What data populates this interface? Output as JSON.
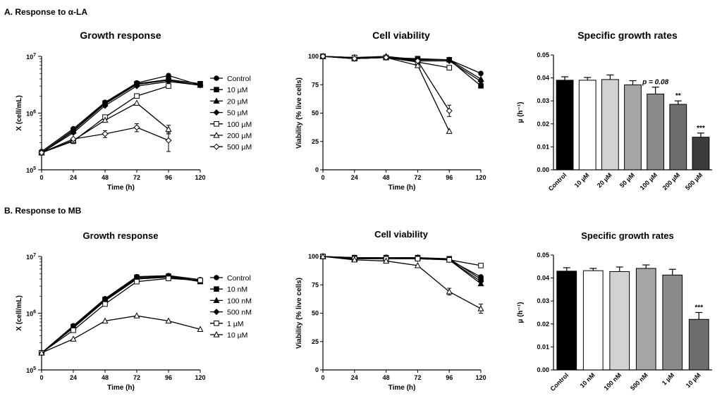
{
  "sections": [
    {
      "label": "A. Response to α-LA"
    },
    {
      "label": "B. Response to MB"
    }
  ],
  "chart_data": [
    {
      "type": "line",
      "title": "Growth response",
      "xlabel": "Time (h)",
      "ylabel": "X (cell/mL)",
      "yscale": "log",
      "ylim": [
        100000,
        10000000
      ],
      "xlim": [
        0,
        120
      ],
      "xticks": [
        "0",
        "24",
        "48",
        "72",
        "96",
        "120"
      ],
      "legend_position": "right",
      "series": [
        {
          "name": "Control",
          "marker": "circle-filled",
          "x": [
            0,
            24,
            48,
            72,
            96,
            120
          ],
          "y": [
            210000,
            530000,
            1550000,
            3400000,
            4600000,
            3100000
          ],
          "err": [
            0,
            0,
            0,
            0,
            0,
            0
          ]
        },
        {
          "name": "10 µM",
          "marker": "square-filled",
          "x": [
            0,
            24,
            48,
            72,
            96,
            120
          ],
          "y": [
            200000,
            500000,
            1500000,
            3300000,
            3900000,
            3300000
          ],
          "err": [
            0,
            0,
            0,
            0,
            0,
            0
          ]
        },
        {
          "name": "20 µM",
          "marker": "triangle-filled",
          "x": [
            0,
            24,
            48,
            72,
            96,
            120
          ],
          "y": [
            200000,
            480000,
            1450000,
            3200000,
            3800000,
            3100000
          ],
          "err": [
            0,
            0,
            0,
            0,
            0,
            0
          ]
        },
        {
          "name": "50 µM",
          "marker": "diamond-filled",
          "x": [
            0,
            24,
            48,
            72,
            96,
            120
          ],
          "y": [
            200000,
            450000,
            1350000,
            3000000,
            3600000,
            3100000
          ],
          "err": [
            0,
            0,
            0,
            0,
            0,
            0
          ]
        },
        {
          "name": "100 µM",
          "marker": "square-open",
          "x": [
            0,
            24,
            48,
            72,
            96
          ],
          "y": [
            200000,
            320000,
            850000,
            2000000,
            3000000
          ],
          "err": [
            0,
            30000,
            80000,
            0,
            0
          ]
        },
        {
          "name": "200 µM",
          "marker": "triangle-open",
          "x": [
            0,
            24,
            48,
            72,
            96
          ],
          "y": [
            200000,
            330000,
            750000,
            1500000,
            520000
          ],
          "err": [
            0,
            0,
            0,
            0,
            90000
          ]
        },
        {
          "name": "500 µM",
          "marker": "diamond-open",
          "x": [
            0,
            24,
            48,
            72,
            96
          ],
          "y": [
            200000,
            350000,
            430000,
            560000,
            330000
          ],
          "err": [
            0,
            0,
            60000,
            90000,
            120000
          ]
        }
      ]
    },
    {
      "type": "line",
      "title": "Cell viability",
      "xlabel": "Time (h)",
      "ylabel": "Viability (% live cells)",
      "ylim": [
        0,
        100
      ],
      "xlim": [
        0,
        120
      ],
      "xticks": [
        "0",
        "24",
        "48",
        "72",
        "96",
        "120"
      ],
      "yticks": [
        "0",
        "25",
        "50",
        "75",
        "100"
      ],
      "series": [
        {
          "marker": "circle-filled",
          "x": [
            0,
            24,
            48,
            72,
            96,
            120
          ],
          "y": [
            100,
            98,
            99,
            97,
            97,
            85
          ],
          "err": [
            0,
            0,
            0,
            0,
            0,
            0
          ]
        },
        {
          "marker": "square-filled",
          "x": [
            0,
            24,
            48,
            72,
            96,
            120
          ],
          "y": [
            100,
            98,
            99,
            98,
            97,
            74
          ],
          "err": [
            0,
            0,
            0,
            0,
            0,
            0
          ]
        },
        {
          "marker": "triangle-filled",
          "x": [
            0,
            24,
            48,
            72,
            96,
            120
          ],
          "y": [
            100,
            99,
            100,
            97,
            97,
            80
          ],
          "err": [
            0,
            0,
            0,
            0,
            0,
            0
          ]
        },
        {
          "marker": "diamond-filled",
          "x": [
            0,
            24,
            48,
            72,
            96,
            120
          ],
          "y": [
            100,
            99,
            99,
            96,
            96,
            78
          ],
          "err": [
            0,
            0,
            0,
            0,
            0,
            0
          ]
        },
        {
          "marker": "square-open",
          "x": [
            0,
            24,
            48,
            72,
            96
          ],
          "y": [
            100,
            99,
            99,
            95,
            90
          ],
          "err": [
            0,
            0,
            0,
            0,
            0
          ]
        },
        {
          "marker": "triangle-open",
          "x": [
            0,
            24,
            48,
            72,
            96
          ],
          "y": [
            100,
            98,
            99,
            92,
            34
          ],
          "err": [
            0,
            0,
            0,
            0,
            0
          ]
        },
        {
          "marker": "diamond-open",
          "x": [
            0,
            24,
            48,
            72,
            96
          ],
          "y": [
            100,
            98,
            99,
            96,
            52
          ],
          "err": [
            0,
            0,
            0,
            0,
            5
          ]
        }
      ]
    },
    {
      "type": "bar",
      "title": "Specific growth rates",
      "ylabel": "µ (h⁻¹)",
      "ylim": [
        0,
        0.05
      ],
      "yticks": [
        "0.00",
        "0.01",
        "0.02",
        "0.03",
        "0.04",
        "0.05"
      ],
      "categories": [
        "Control",
        "10 µM",
        "20 µM",
        "50 µM",
        "100 µM",
        "200 µM",
        "500 µM"
      ],
      "values": [
        0.039,
        0.039,
        0.0393,
        0.037,
        0.033,
        0.0285,
        0.0142
      ],
      "errors": [
        0.0015,
        0.0012,
        0.002,
        0.0018,
        0.003,
        0.0015,
        0.0018
      ],
      "colors": [
        "#000000",
        "#ffffff",
        "#d2d2d2",
        "#a5a5a5",
        "#8a8a8a",
        "#6e6e6e",
        "#3c3c3c"
      ],
      "annotations": [
        "",
        "",
        "",
        "",
        "p = 0.08",
        "**",
        "***"
      ]
    },
    {
      "type": "line",
      "title": "Growth response",
      "xlabel": "Time (h)",
      "ylabel": "X (cell/mL)",
      "yscale": "log",
      "ylim": [
        100000,
        10000000
      ],
      "xlim": [
        0,
        120
      ],
      "xticks": [
        "0",
        "24",
        "48",
        "72",
        "96",
        "120"
      ],
      "legend_position": "right",
      "series": [
        {
          "name": "Control",
          "marker": "circle-filled",
          "x": [
            0,
            24,
            48,
            72,
            96,
            120
          ],
          "y": [
            200000,
            600000,
            1800000,
            4400000,
            4600000,
            3900000
          ],
          "err": [
            0,
            0,
            0,
            0,
            0,
            0
          ]
        },
        {
          "name": "10 nM",
          "marker": "square-filled",
          "x": [
            0,
            24,
            48,
            72,
            96,
            120
          ],
          "y": [
            200000,
            580000,
            1750000,
            4300000,
            4500000,
            3700000
          ],
          "err": [
            0,
            0,
            0,
            0,
            0,
            0
          ]
        },
        {
          "name": "100 nM",
          "marker": "triangle-filled",
          "x": [
            0,
            24,
            48,
            72,
            96,
            120
          ],
          "y": [
            200000,
            560000,
            1700000,
            4100000,
            4400000,
            3600000
          ],
          "err": [
            0,
            0,
            0,
            0,
            0,
            0
          ]
        },
        {
          "name": "500 nM",
          "marker": "diamond-filled",
          "x": [
            0,
            24,
            48,
            72,
            96,
            120
          ],
          "y": [
            200000,
            550000,
            1650000,
            4000000,
            4300000,
            3700000
          ],
          "err": [
            0,
            0,
            0,
            0,
            0,
            0
          ]
        },
        {
          "name": "1 µM",
          "marker": "square-open",
          "x": [
            0,
            24,
            48,
            72,
            96,
            120
          ],
          "y": [
            200000,
            500000,
            1450000,
            3600000,
            4100000,
            3800000
          ],
          "err": [
            0,
            0,
            0,
            0,
            0,
            0
          ]
        },
        {
          "name": "10 µM",
          "marker": "triangle-open",
          "x": [
            0,
            24,
            48,
            72,
            96,
            120
          ],
          "y": [
            200000,
            350000,
            730000,
            900000,
            730000,
            520000
          ],
          "err": [
            0,
            0,
            0,
            0,
            0,
            0
          ]
        }
      ]
    },
    {
      "type": "line",
      "title": "Cell viability",
      "xlabel": "Time (h)",
      "ylabel": "Viability (% live cells)",
      "ylim": [
        0,
        100
      ],
      "xlim": [
        0,
        120
      ],
      "xticks": [
        "0",
        "24",
        "48",
        "72",
        "96",
        "120"
      ],
      "yticks": [
        "0",
        "25",
        "50",
        "75",
        "100"
      ],
      "series": [
        {
          "marker": "circle-filled",
          "x": [
            0,
            24,
            48,
            72,
            96,
            120
          ],
          "y": [
            100,
            99,
            99,
            99,
            97,
            82
          ],
          "err": [
            0,
            0,
            0,
            0,
            0,
            0
          ]
        },
        {
          "marker": "square-filled",
          "x": [
            0,
            24,
            48,
            72,
            96,
            120
          ],
          "y": [
            100,
            99,
            99,
            99,
            98,
            80
          ],
          "err": [
            0,
            0,
            0,
            0,
            0,
            0
          ]
        },
        {
          "marker": "triangle-filled",
          "x": [
            0,
            24,
            48,
            72,
            96,
            120
          ],
          "y": [
            100,
            98,
            99,
            99,
            97,
            76
          ],
          "err": [
            0,
            0,
            0,
            0,
            0,
            0
          ]
        },
        {
          "marker": "diamond-filled",
          "x": [
            0,
            24,
            48,
            72,
            96,
            120
          ],
          "y": [
            100,
            98,
            99,
            98,
            97,
            78
          ],
          "err": [
            0,
            0,
            0,
            0,
            0,
            0
          ]
        },
        {
          "marker": "square-open",
          "x": [
            0,
            24,
            48,
            72,
            96,
            120
          ],
          "y": [
            100,
            98,
            98,
            98,
            97,
            92
          ],
          "err": [
            0,
            0,
            0,
            0,
            0,
            0
          ]
        },
        {
          "marker": "triangle-open",
          "x": [
            0,
            24,
            48,
            72,
            96,
            120
          ],
          "y": [
            100,
            97,
            96,
            92,
            69,
            54
          ],
          "err": [
            0,
            0,
            0,
            0,
            3,
            4
          ]
        }
      ]
    },
    {
      "type": "bar",
      "title": "Specific growth rates",
      "ylabel": "µ (h⁻¹)",
      "ylim": [
        0,
        0.05
      ],
      "yticks": [
        "0.00",
        "0.01",
        "0.02",
        "0.03",
        "0.04",
        "0.05"
      ],
      "categories": [
        "Control",
        "10 nM",
        "100 nM",
        "500 nM",
        "1 µM",
        "10 µM"
      ],
      "values": [
        0.043,
        0.0432,
        0.0428,
        0.0442,
        0.0413,
        0.022
      ],
      "errors": [
        0.0015,
        0.001,
        0.002,
        0.0015,
        0.0025,
        0.003
      ],
      "colors": [
        "#000000",
        "#ffffff",
        "#d2d2d2",
        "#a5a5a5",
        "#8a8a8a",
        "#6e6e6e"
      ],
      "annotations": [
        "",
        "",
        "",
        "",
        "",
        "***"
      ]
    }
  ]
}
